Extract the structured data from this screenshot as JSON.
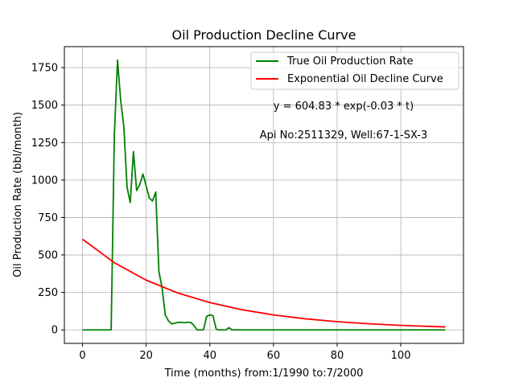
{
  "chart_data": {
    "type": "line",
    "title": "Oil Production Decline Curve",
    "xlabel": "Time (months) from:1/1990 to:7/2000",
    "ylabel": "Oil Production Rate (bbl/month)",
    "xlim": [
      -5.7,
      119.7
    ],
    "ylim": [
      -90,
      1890
    ],
    "x_ticks": [
      0,
      20,
      40,
      60,
      80,
      100
    ],
    "y_ticks": [
      0,
      250,
      500,
      750,
      1000,
      1250,
      1500,
      1750
    ],
    "grid": true,
    "legend_position": "top-right",
    "annotations": [
      "y = 604.83 * exp(-0.03 * t)",
      "Api No:2511329, Well:67-1-SX-3"
    ],
    "series": [
      {
        "name": "True Oil Production Rate",
        "color": "#008000",
        "x": [
          0,
          1,
          2,
          3,
          4,
          5,
          6,
          7,
          8,
          9,
          10,
          11,
          12,
          13,
          14,
          15,
          16,
          17,
          18,
          19,
          20,
          21,
          22,
          23,
          24,
          25,
          26,
          27,
          28,
          29,
          30,
          31,
          32,
          33,
          34,
          35,
          36,
          37,
          38,
          39,
          40,
          41,
          42,
          43,
          44,
          45,
          46,
          47,
          48,
          60,
          80,
          100,
          114
        ],
        "y": [
          0,
          0,
          0,
          0,
          0,
          0,
          0,
          0,
          0,
          0,
          1300,
          1800,
          1530,
          1350,
          950,
          850,
          1190,
          930,
          970,
          1040,
          960,
          880,
          860,
          920,
          390,
          280,
          100,
          60,
          40,
          45,
          50,
          50,
          48,
          50,
          50,
          30,
          0,
          0,
          0,
          90,
          100,
          95,
          5,
          0,
          0,
          0,
          15,
          0,
          0,
          0,
          0,
          0,
          0
        ]
      },
      {
        "name": "Exponential Oil Decline Curve",
        "color": "#ff0000",
        "x": [
          0,
          10,
          20,
          30,
          40,
          50,
          60,
          70,
          80,
          90,
          100,
          114
        ],
        "y": [
          604.83,
          448.1,
          331.9,
          245.9,
          182.2,
          135.0,
          100.0,
          74.1,
          54.9,
          40.6,
          30.1,
          19.8
        ]
      }
    ]
  }
}
